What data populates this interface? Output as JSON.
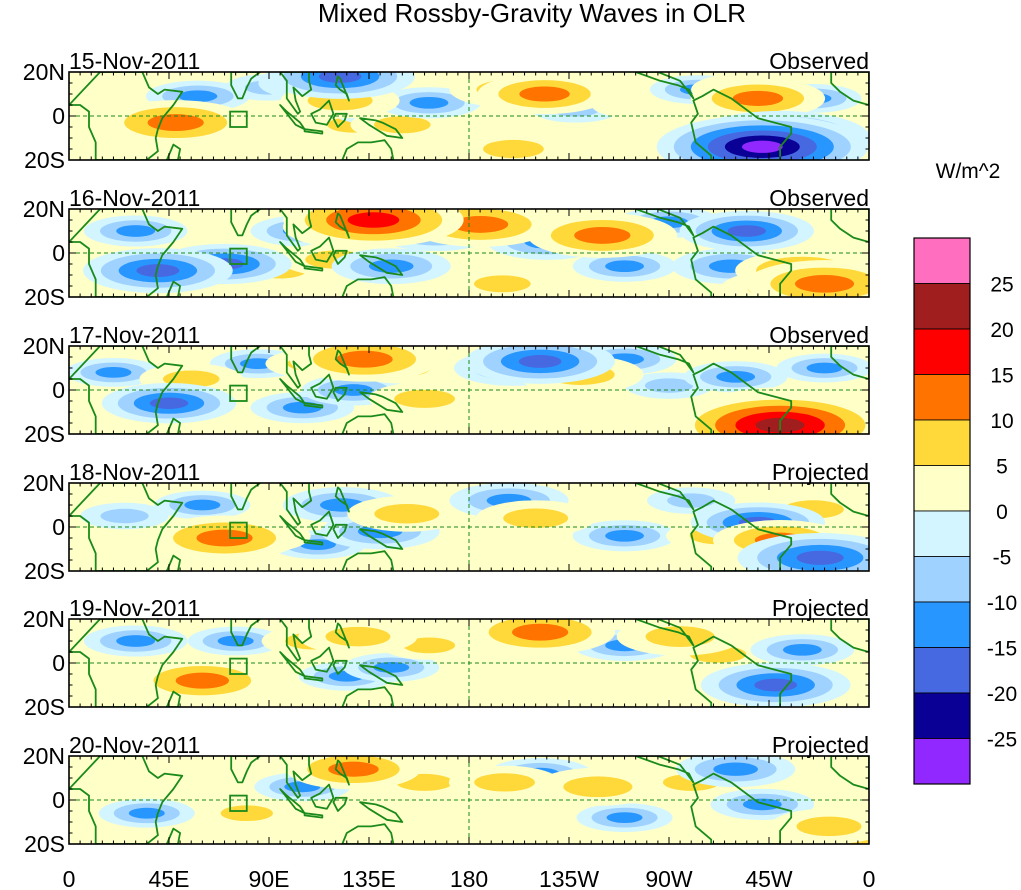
{
  "chart_data": {
    "type": "heatmap",
    "title": "Mixed Rossby-Gravity Waves in OLR",
    "panels": [
      {
        "date": "15-Nov-2011",
        "status": "Observed"
      },
      {
        "date": "16-Nov-2011",
        "status": "Observed"
      },
      {
        "date": "17-Nov-2011",
        "status": "Observed"
      },
      {
        "date": "18-Nov-2011",
        "status": "Projected"
      },
      {
        "date": "19-Nov-2011",
        "status": "Projected"
      },
      {
        "date": "20-Nov-2011",
        "status": "Projected"
      }
    ],
    "x_tick_labels": [
      "0",
      "45E",
      "90E",
      "135E",
      "180",
      "135W",
      "90W",
      "45W",
      "0"
    ],
    "x_tick_lons": [
      0,
      45,
      90,
      135,
      180,
      225,
      270,
      315,
      360
    ],
    "y_tick_labels": [
      "20N",
      "0",
      "20S"
    ],
    "y_tick_lats": [
      20,
      0,
      -20
    ],
    "xlim": [
      0,
      360
    ],
    "ylim": [
      -20,
      20
    ],
    "colorbar": {
      "units": "W/m^2",
      "labels": [
        "25",
        "20",
        "15",
        "10",
        "5",
        "0",
        "-5",
        "-10",
        "-15",
        "-20",
        "-25"
      ],
      "levels": [
        25,
        20,
        15,
        10,
        5,
        0,
        -5,
        -10,
        -15,
        -20,
        -25
      ],
      "colors": [
        "#ff6ebf",
        "#a01e1e",
        "#ff0000",
        "#ff7300",
        "#ffd93a",
        "#ffffc8",
        "#d2f5ff",
        "#a0d2ff",
        "#2896ff",
        "#4669e1",
        "#0a0096",
        "#9128ff"
      ]
    },
    "anomalies": [
      [
        {
          "lon": 22,
          "lat": 7,
          "val": 3
        },
        {
          "lon": 40,
          "lat": -4,
          "val": 8
        },
        {
          "lon": 48,
          "lat": -3,
          "val": 12
        },
        {
          "lon": 58,
          "lat": 9,
          "val": -6
        },
        {
          "lon": 90,
          "lat": 13,
          "val": -4
        },
        {
          "lon": 78,
          "lat": -6,
          "val": 4
        },
        {
          "lon": 100,
          "lat": -10,
          "val": 3
        },
        {
          "lon": 112,
          "lat": 15,
          "val": -8
        },
        {
          "lon": 122,
          "lat": 18,
          "val": -12
        },
        {
          "lon": 122,
          "lat": 7,
          "val": 8
        },
        {
          "lon": 128,
          "lat": -4,
          "val": 5
        },
        {
          "lon": 140,
          "lat": 3,
          "val": -6
        },
        {
          "lon": 150,
          "lat": -4,
          "val": 6
        },
        {
          "lon": 162,
          "lat": 6,
          "val": -6
        },
        {
          "lon": 198,
          "lat": 12,
          "val": 8
        },
        {
          "lon": 214,
          "lat": 10,
          "val": 10
        },
        {
          "lon": 228,
          "lat": 3,
          "val": -4
        },
        {
          "lon": 200,
          "lat": -15,
          "val": 7
        },
        {
          "lon": 255,
          "lat": 5,
          "val": 4
        },
        {
          "lon": 283,
          "lat": 12,
          "val": -5
        },
        {
          "lon": 305,
          "lat": 12,
          "val": 7
        },
        {
          "lon": 310,
          "lat": 8,
          "val": 10
        },
        {
          "lon": 320,
          "lat": -10,
          "val": -16
        },
        {
          "lon": 312,
          "lat": -14,
          "val": -20
        },
        {
          "lon": 335,
          "lat": 8,
          "val": -5
        },
        {
          "lon": 350,
          "lat": -15,
          "val": 4
        }
      ],
      [
        {
          "lon": 30,
          "lat": 10,
          "val": -6
        },
        {
          "lon": 40,
          "lat": -8,
          "val": -12
        },
        {
          "lon": 70,
          "lat": -5,
          "val": -10
        },
        {
          "lon": 60,
          "lat": 5,
          "val": 4
        },
        {
          "lon": 105,
          "lat": 10,
          "val": -6
        },
        {
          "lon": 95,
          "lat": -8,
          "val": 5
        },
        {
          "lon": 130,
          "lat": 12,
          "val": 12
        },
        {
          "lon": 137,
          "lat": 15,
          "val": 16
        },
        {
          "lon": 120,
          "lat": -3,
          "val": 7
        },
        {
          "lon": 145,
          "lat": -6,
          "val": -8
        },
        {
          "lon": 165,
          "lat": 9,
          "val": -8
        },
        {
          "lon": 175,
          "lat": 14,
          "val": 8
        },
        {
          "lon": 185,
          "lat": 13,
          "val": 12
        },
        {
          "lon": 195,
          "lat": -14,
          "val": 6
        },
        {
          "lon": 215,
          "lat": 5,
          "val": -8
        },
        {
          "lon": 240,
          "lat": 8,
          "val": 12
        },
        {
          "lon": 250,
          "lat": -6,
          "val": -6
        },
        {
          "lon": 270,
          "lat": 14,
          "val": -6
        },
        {
          "lon": 305,
          "lat": 10,
          "val": -10
        },
        {
          "lon": 298,
          "lat": -6,
          "val": -8
        },
        {
          "lon": 330,
          "lat": -8,
          "val": 10
        },
        {
          "lon": 340,
          "lat": -14,
          "val": 13
        },
        {
          "lon": 320,
          "lat": -16,
          "val": 8
        }
      ],
      [
        {
          "lon": 20,
          "lat": 8,
          "val": -5
        },
        {
          "lon": 45,
          "lat": -6,
          "val": -10
        },
        {
          "lon": 55,
          "lat": 5,
          "val": 6
        },
        {
          "lon": 75,
          "lat": -4,
          "val": 4
        },
        {
          "lon": 85,
          "lat": 12,
          "val": -5
        },
        {
          "lon": 105,
          "lat": -8,
          "val": -6
        },
        {
          "lon": 110,
          "lat": 12,
          "val": 5
        },
        {
          "lon": 133,
          "lat": 14,
          "val": 12
        },
        {
          "lon": 128,
          "lat": 0,
          "val": -6
        },
        {
          "lon": 150,
          "lat": 10,
          "val": 6
        },
        {
          "lon": 160,
          "lat": -4,
          "val": 7
        },
        {
          "lon": 200,
          "lat": 10,
          "val": -8
        },
        {
          "lon": 212,
          "lat": 13,
          "val": -12
        },
        {
          "lon": 230,
          "lat": 7,
          "val": 9
        },
        {
          "lon": 250,
          "lat": 14,
          "val": -6
        },
        {
          "lon": 270,
          "lat": 2,
          "val": -4
        },
        {
          "lon": 220,
          "lat": -12,
          "val": 4
        },
        {
          "lon": 300,
          "lat": 6,
          "val": -6
        },
        {
          "lon": 318,
          "lat": -8,
          "val": 10
        },
        {
          "lon": 325,
          "lat": -12,
          "val": 16
        },
        {
          "lon": 320,
          "lat": -16,
          "val": 20
        },
        {
          "lon": 340,
          "lat": 10,
          "val": -5
        }
      ],
      [
        {
          "lon": 25,
          "lat": 5,
          "val": -4
        },
        {
          "lon": 60,
          "lat": 10,
          "val": -5
        },
        {
          "lon": 70,
          "lat": -5,
          "val": 12
        },
        {
          "lon": 82,
          "lat": -4,
          "val": 8
        },
        {
          "lon": 100,
          "lat": 12,
          "val": 4
        },
        {
          "lon": 112,
          "lat": -8,
          "val": -5
        },
        {
          "lon": 123,
          "lat": 10,
          "val": -8
        },
        {
          "lon": 140,
          "lat": -2,
          "val": -8
        },
        {
          "lon": 152,
          "lat": 6,
          "val": 8
        },
        {
          "lon": 168,
          "lat": -10,
          "val": 4
        },
        {
          "lon": 198,
          "lat": 12,
          "val": -8
        },
        {
          "lon": 210,
          "lat": 4,
          "val": 8
        },
        {
          "lon": 232,
          "lat": 12,
          "val": 4
        },
        {
          "lon": 250,
          "lat": -4,
          "val": -6
        },
        {
          "lon": 280,
          "lat": 12,
          "val": -4
        },
        {
          "lon": 292,
          "lat": -4,
          "val": 6
        },
        {
          "lon": 310,
          "lat": 2,
          "val": -10
        },
        {
          "lon": 320,
          "lat": -6,
          "val": 10
        },
        {
          "lon": 335,
          "lat": 8,
          "val": 7
        },
        {
          "lon": 338,
          "lat": -14,
          "val": -14
        }
      ],
      [
        {
          "lon": 30,
          "lat": 10,
          "val": -6
        },
        {
          "lon": 48,
          "lat": -5,
          "val": 6
        },
        {
          "lon": 60,
          "lat": -8,
          "val": 11
        },
        {
          "lon": 75,
          "lat": 10,
          "val": -5
        },
        {
          "lon": 90,
          "lat": -8,
          "val": 4
        },
        {
          "lon": 110,
          "lat": 10,
          "val": 6
        },
        {
          "lon": 130,
          "lat": 12,
          "val": 8
        },
        {
          "lon": 125,
          "lat": -6,
          "val": -5
        },
        {
          "lon": 145,
          "lat": -2,
          "val": -5
        },
        {
          "lon": 162,
          "lat": 8,
          "val": 5
        },
        {
          "lon": 200,
          "lat": 10,
          "val": 8
        },
        {
          "lon": 212,
          "lat": 14,
          "val": 12
        },
        {
          "lon": 220,
          "lat": -4,
          "val": 4
        },
        {
          "lon": 250,
          "lat": 8,
          "val": -6
        },
        {
          "lon": 275,
          "lat": 12,
          "val": 9
        },
        {
          "lon": 292,
          "lat": 4,
          "val": 6
        },
        {
          "lon": 318,
          "lat": -10,
          "val": -12
        },
        {
          "lon": 330,
          "lat": 6,
          "val": -6
        },
        {
          "lon": 342,
          "lat": 12,
          "val": 4
        }
      ],
      [
        {
          "lon": 35,
          "lat": -6,
          "val": -5
        },
        {
          "lon": 60,
          "lat": 10,
          "val": 4
        },
        {
          "lon": 80,
          "lat": -6,
          "val": 5
        },
        {
          "lon": 105,
          "lat": 6,
          "val": -5
        },
        {
          "lon": 128,
          "lat": 14,
          "val": 10
        },
        {
          "lon": 140,
          "lat": -4,
          "val": 4
        },
        {
          "lon": 160,
          "lat": 8,
          "val": 6
        },
        {
          "lon": 196,
          "lat": 8,
          "val": 7
        },
        {
          "lon": 212,
          "lat": 12,
          "val": -6
        },
        {
          "lon": 238,
          "lat": 6,
          "val": 9
        },
        {
          "lon": 250,
          "lat": -8,
          "val": -5
        },
        {
          "lon": 280,
          "lat": 8,
          "val": 6
        },
        {
          "lon": 300,
          "lat": 14,
          "val": -8
        },
        {
          "lon": 312,
          "lat": -2,
          "val": -6
        },
        {
          "lon": 342,
          "lat": -12,
          "val": 8
        },
        {
          "lon": 350,
          "lat": -18,
          "val": 6
        }
      ]
    ]
  }
}
